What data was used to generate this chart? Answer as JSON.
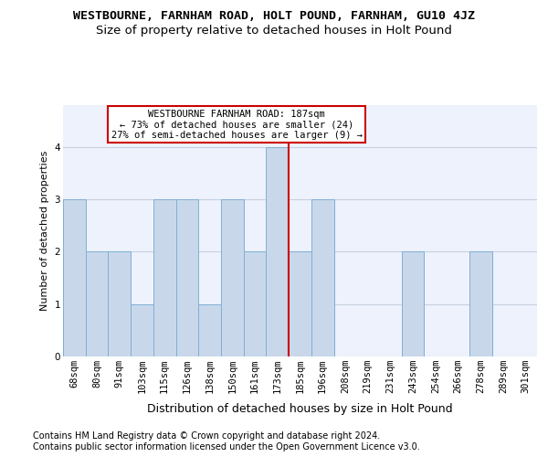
{
  "title_line1": "WESTBOURNE, FARNHAM ROAD, HOLT POUND, FARNHAM, GU10 4JZ",
  "title_line2": "Size of property relative to detached houses in Holt Pound",
  "xlabel": "Distribution of detached houses by size in Holt Pound",
  "ylabel": "Number of detached properties",
  "bins": [
    "68sqm",
    "80sqm",
    "91sqm",
    "103sqm",
    "115sqm",
    "126sqm",
    "138sqm",
    "150sqm",
    "161sqm",
    "173sqm",
    "185sqm",
    "196sqm",
    "208sqm",
    "219sqm",
    "231sqm",
    "243sqm",
    "254sqm",
    "266sqm",
    "278sqm",
    "289sqm",
    "301sqm"
  ],
  "values": [
    3,
    2,
    2,
    1,
    3,
    3,
    1,
    3,
    2,
    4,
    2,
    3,
    0,
    0,
    0,
    2,
    0,
    0,
    2,
    0,
    0
  ],
  "bar_color": "#c8d8ea",
  "bar_edge_color": "#7fafd4",
  "vline_x": 9.5,
  "vline_color": "#cc0000",
  "annotation_line1": "WESTBOURNE FARNHAM ROAD: 187sqm",
  "annotation_line2": "← 73% of detached houses are smaller (24)",
  "annotation_line3": "27% of semi-detached houses are larger (9) →",
  "annotation_box_facecolor": "#ffffff",
  "annotation_box_edgecolor": "#cc0000",
  "ylim": [
    0,
    4.8
  ],
  "yticks": [
    0,
    1,
    2,
    3,
    4
  ],
  "footer": "Contains HM Land Registry data © Crown copyright and database right 2024.\nContains public sector information licensed under the Open Government Licence v3.0.",
  "plot_bg_color": "#eef2fc",
  "grid_color": "#c8d0e0",
  "title1_fontsize": 9.5,
  "title2_fontsize": 9.5,
  "xlabel_fontsize": 9,
  "ylabel_fontsize": 8,
  "tick_fontsize": 7.5,
  "annot_fontsize": 7.5,
  "footer_fontsize": 7
}
